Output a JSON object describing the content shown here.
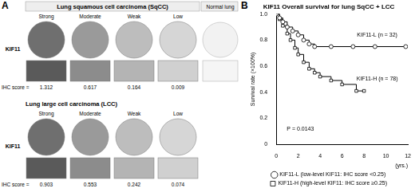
{
  "panel_a": {
    "label": "A",
    "row_label": "KIF11",
    "score_label": "IHC score =",
    "blocks": [
      {
        "title": "Lung squamous cell carcinoma (SqCC)",
        "columns": [
          "Strong",
          "Moderate",
          "Weak",
          "Low"
        ],
        "scores": [
          1.312,
          0.617,
          0.164,
          0.009
        ],
        "extra_column": "Normal lung"
      },
      {
        "title": "Lung large cell carcinoma (LCC)",
        "columns": [
          "Strong",
          "Moderate",
          "Weak",
          "Low"
        ],
        "scores": [
          0.903,
          0.553,
          0.242,
          0.074
        ]
      }
    ]
  },
  "panel_b": {
    "label": "B"
  },
  "chart_data": {
    "type": "line",
    "title": "KIF11 Overall survival for lung SqCC + LCC",
    "y_label": "Survival rate (×100%)",
    "x_label": "(yrs.)",
    "annotations": [
      "KIF11-L (n = 32)",
      "KIF11-H (n = 78)",
      "P = 0.0143"
    ],
    "series": [
      {
        "name": "KIF11-L (low-level KIF11: IHC score <0.25)",
        "color": "#000000",
        "marker": "circle",
        "line_style": "steps",
        "x": [
          0,
          0.3,
          0.6,
          1.0,
          1.5,
          2.0,
          2.5,
          3.0,
          3.5,
          5.0,
          7.0,
          9.0,
          11.8
        ],
        "values": [
          1.0,
          0.97,
          0.94,
          0.9,
          0.87,
          0.84,
          0.8,
          0.77,
          0.75,
          0.75,
          0.75,
          0.75,
          0.75
        ]
      },
      {
        "name": "KIF11-H (high-level KIF11: IHC score ≥0.25)",
        "color": "#000000",
        "marker": "square",
        "line_style": "steps",
        "x": [
          0,
          0.3,
          0.6,
          1.0,
          1.3,
          1.7,
          2.0,
          2.5,
          3.0,
          3.5,
          4.0,
          5.0,
          6.0,
          7.3,
          8.0
        ],
        "values": [
          1.0,
          0.96,
          0.91,
          0.85,
          0.8,
          0.74,
          0.69,
          0.63,
          0.58,
          0.55,
          0.52,
          0.49,
          0.46,
          0.41,
          0.41
        ]
      }
    ],
    "xlim": [
      0,
      12
    ],
    "xticks": [
      0,
      2,
      4,
      6,
      8,
      10,
      12
    ],
    "ylim": [
      0,
      1
    ],
    "yticks": [
      0,
      0.2,
      0.4,
      0.6,
      0.8,
      {
        "value": 1,
        "label": "1.0"
      }
    ],
    "grid": false,
    "legend": "bottom"
  }
}
